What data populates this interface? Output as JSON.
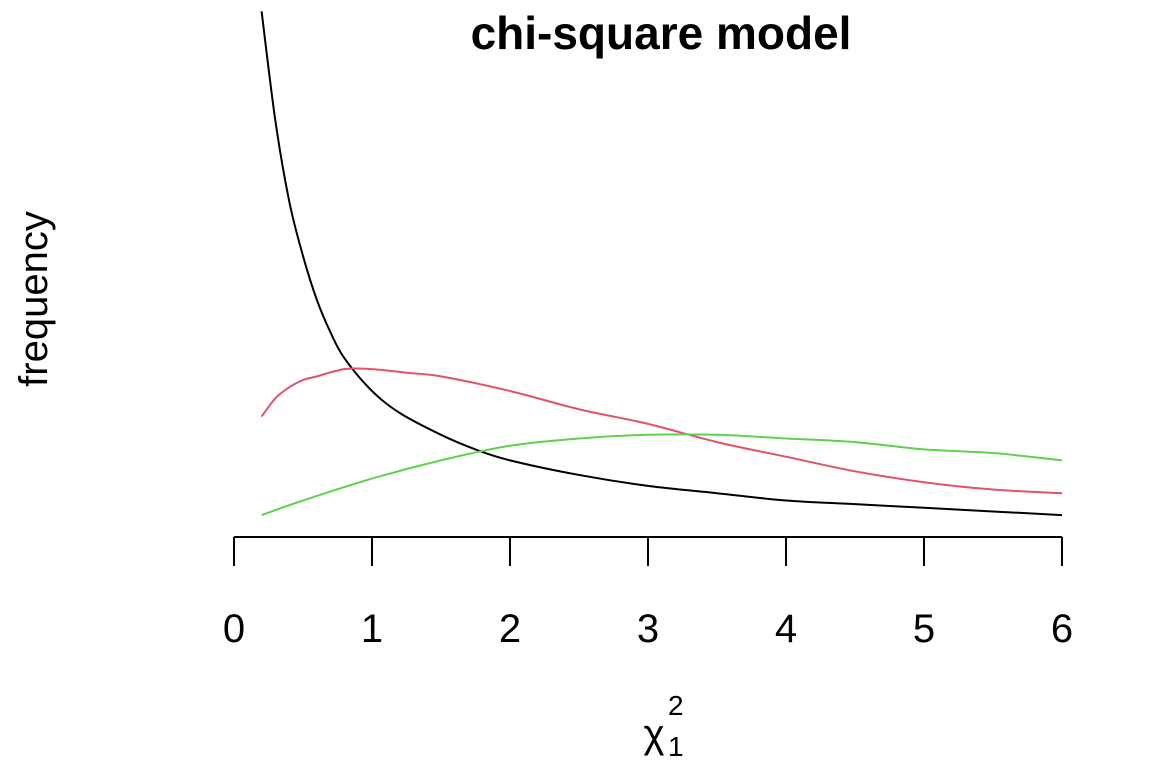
{
  "chart_data": {
    "type": "line",
    "title": "chi-square model",
    "xlabel": {
      "symbol": "χ",
      "subscript": "1",
      "superscript": "2"
    },
    "ylabel": "frequency",
    "xlim": [
      0,
      6
    ],
    "ylim": [
      0,
      1.4
    ],
    "x_ticks": [
      "0",
      "1",
      "2",
      "3",
      "4",
      "5",
      "6"
    ],
    "y_axis_visible": false,
    "grid": false,
    "legend": "none",
    "series": [
      {
        "color": "#000000",
        "points": [
          [
            0.2,
            1.44
          ],
          [
            0.3,
            1.14
          ],
          [
            0.4,
            0.92
          ],
          [
            0.5,
            0.77
          ],
          [
            0.6,
            0.65
          ],
          [
            0.7,
            0.56
          ],
          [
            0.8,
            0.49
          ],
          [
            1.0,
            0.4
          ],
          [
            1.2,
            0.34
          ],
          [
            1.5,
            0.28
          ],
          [
            1.75,
            0.24
          ],
          [
            2.0,
            0.21
          ],
          [
            2.5,
            0.17
          ],
          [
            3.0,
            0.14
          ],
          [
            3.5,
            0.12
          ],
          [
            4.0,
            0.1
          ],
          [
            4.5,
            0.09
          ],
          [
            5.0,
            0.08
          ],
          [
            5.5,
            0.07
          ],
          [
            6.0,
            0.06
          ]
        ]
      },
      {
        "color": "#DF536B",
        "points": [
          [
            0.2,
            0.33
          ],
          [
            0.3,
            0.38
          ],
          [
            0.4,
            0.41
          ],
          [
            0.5,
            0.43
          ],
          [
            0.6,
            0.44
          ],
          [
            0.8,
            0.46
          ],
          [
            1.0,
            0.46
          ],
          [
            1.25,
            0.45
          ],
          [
            1.5,
            0.44
          ],
          [
            2.0,
            0.4
          ],
          [
            2.5,
            0.35
          ],
          [
            3.0,
            0.31
          ],
          [
            3.5,
            0.26
          ],
          [
            4.0,
            0.22
          ],
          [
            4.5,
            0.18
          ],
          [
            5.0,
            0.15
          ],
          [
            5.5,
            0.13
          ],
          [
            6.0,
            0.12
          ]
        ]
      },
      {
        "color": "#61D04F",
        "points": [
          [
            0.2,
            0.06
          ],
          [
            0.5,
            0.1
          ],
          [
            1.0,
            0.16
          ],
          [
            1.5,
            0.21
          ],
          [
            2.0,
            0.25
          ],
          [
            2.5,
            0.27
          ],
          [
            3.0,
            0.28
          ],
          [
            3.5,
            0.28
          ],
          [
            4.0,
            0.27
          ],
          [
            4.5,
            0.26
          ],
          [
            5.0,
            0.24
          ],
          [
            5.5,
            0.23
          ],
          [
            6.0,
            0.21
          ]
        ]
      }
    ]
  }
}
